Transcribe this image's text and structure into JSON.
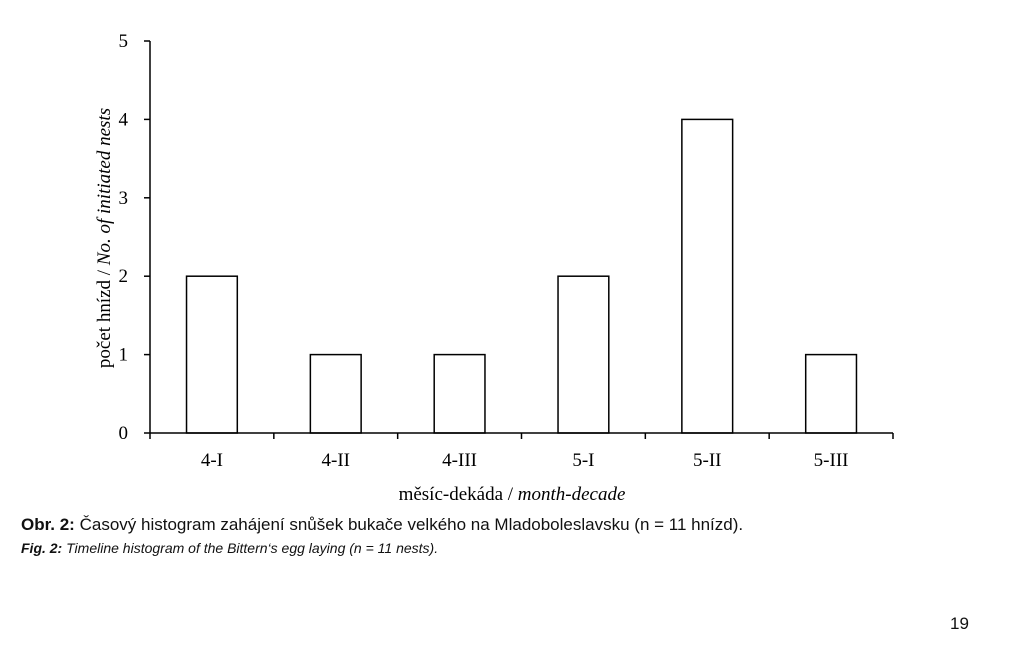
{
  "chart_data": {
    "type": "bar",
    "categories": [
      "4-I",
      "4-II",
      "4-III",
      "5-I",
      "5-II",
      "5-III"
    ],
    "values": [
      2,
      1,
      1,
      2,
      4,
      1
    ],
    "ylim": [
      0,
      5
    ],
    "yticks": [
      0,
      1,
      2,
      3,
      4,
      5
    ],
    "ylabel": {
      "czech": "počet hnízd / ",
      "english": "No. of initiated nests"
    },
    "xlabel": {
      "czech": "měsíc-dekáda / ",
      "english": "month-decade"
    },
    "grid": false,
    "bar_fill": "#ffffff",
    "bar_stroke": "#000000"
  },
  "caption": {
    "czech_label": "Obr. 2:",
    "czech_text": " Časový histogram zahájení snůšek bukače velkého na Mladoboleslavsku (n = 11 hnízd).",
    "english_label": "Fig. 2:",
    "english_text": " Timeline histogram of the Bittern‘s egg laying (n = 11 nests)."
  },
  "page_number": "19"
}
